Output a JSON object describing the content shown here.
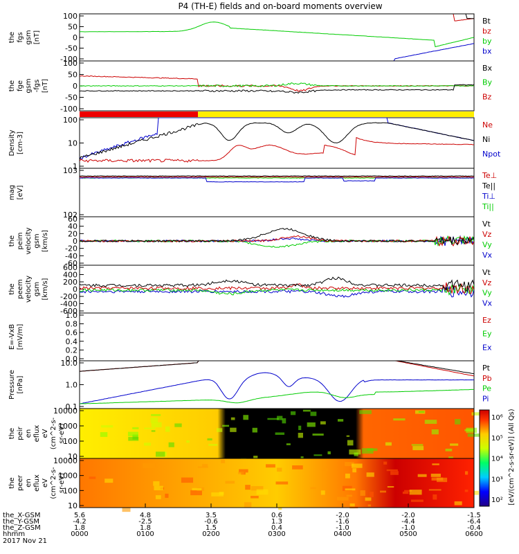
{
  "title": "P4 (TH-E) fields and on-board moments overview",
  "chart_data": [
    {
      "type": "line",
      "panel": "fgs",
      "ylabel": [
        "the",
        "fgs",
        "gsm",
        "[nT]"
      ],
      "ylim": [
        -100,
        100
      ],
      "yticks": [
        -100,
        -50,
        0,
        50,
        100
      ],
      "legend": [
        {
          "name": "Bt",
          "color": "#000000"
        },
        {
          "name": "bz",
          "color": "#cc0000"
        },
        {
          "name": "by",
          "color": "#00cc00"
        },
        {
          "name": "bx",
          "color": "#0000cc"
        }
      ]
    },
    {
      "type": "line",
      "panel": "fge",
      "ylabel": [
        "the",
        "fge",
        "gsm",
        "-fgs",
        "[nT]"
      ],
      "ylim": [
        -120,
        120
      ],
      "yticks": [
        -100,
        -50,
        0,
        50,
        100
      ],
      "legend": [
        {
          "name": "Bx",
          "color": "#000000"
        },
        {
          "name": "By",
          "color": "#00cc00"
        },
        {
          "name": "Bz",
          "color": "#cc0000"
        }
      ]
    },
    {
      "type": "bar",
      "panel": "mode",
      "segments": [
        {
          "from": 0.0,
          "to": 0.3,
          "color": "#ee0000"
        },
        {
          "from": 0.3,
          "to": 1.0,
          "color": "#ffee00"
        }
      ]
    },
    {
      "type": "line",
      "panel": "density",
      "scale": "log",
      "ylabel": [
        "Density",
        "[cm-3]"
      ],
      "ylim": [
        0.5,
        200
      ],
      "yticks": [
        "1",
        "10",
        "100"
      ],
      "legend": [
        {
          "name": "Ne",
          "color": "#cc0000"
        },
        {
          "name": "Ni",
          "color": "#000000"
        },
        {
          "name": "Npot",
          "color": "#0000cc"
        }
      ]
    },
    {
      "type": "line",
      "panel": "temperature",
      "ylabel": [
        "mag",
        "[eV]"
      ],
      "yticks": [
        "102",
        "103"
      ],
      "legend": [
        {
          "name": "Te⊥",
          "color": "#cc0000"
        },
        {
          "name": "Te||",
          "color": "#000000"
        },
        {
          "name": "Ti⊥",
          "color": "#0000cc"
        },
        {
          "name": "Ti||",
          "color": "#00cc00"
        }
      ]
    },
    {
      "type": "line",
      "panel": "peim",
      "ylabel": [
        "the",
        "peim",
        "velocity",
        "gsm",
        "[km/s]"
      ],
      "ylim": [
        -60,
        60
      ],
      "yticks": [
        -60,
        -40,
        -20,
        0,
        20,
        40,
        60
      ],
      "legend": [
        {
          "name": "Vt",
          "color": "#000000"
        },
        {
          "name": "Vz",
          "color": "#cc0000"
        },
        {
          "name": "Vy",
          "color": "#00cc00"
        },
        {
          "name": "Vx",
          "color": "#0000cc"
        }
      ]
    },
    {
      "type": "line",
      "panel": "peem",
      "ylabel": [
        "the",
        "peem",
        "velocity",
        "gsm",
        "[km/s]"
      ],
      "ylim": [
        -600,
        600
      ],
      "yticks": [
        -600,
        -400,
        -200,
        0,
        200,
        400,
        600
      ],
      "legend": [
        {
          "name": "Vt",
          "color": "#000000"
        },
        {
          "name": "Vz",
          "color": "#cc0000"
        },
        {
          "name": "Vy",
          "color": "#00cc00"
        },
        {
          "name": "Vx",
          "color": "#0000cc"
        }
      ]
    },
    {
      "type": "line",
      "panel": "efield",
      "ylabel": [
        "E=-VxB",
        "[mV/m]"
      ],
      "ylim": [
        0,
        1
      ],
      "yticks": [
        "0.0",
        "0.2",
        "0.4",
        "0.6",
        "0.8",
        "1.0"
      ],
      "legend": [
        {
          "name": "Ez",
          "color": "#cc0000"
        },
        {
          "name": "Ey",
          "color": "#00cc00"
        },
        {
          "name": "Ex",
          "color": "#0000cc"
        }
      ]
    },
    {
      "type": "line",
      "panel": "pressure",
      "scale": "log",
      "ylabel": [
        "Pressure",
        "[nPa]"
      ],
      "yticks": [
        "0.1",
        "1.0",
        "10.0"
      ],
      "legend": [
        {
          "name": "Pt",
          "color": "#000000"
        },
        {
          "name": "Pb",
          "color": "#cc0000"
        },
        {
          "name": "Pe",
          "color": "#00cc00"
        },
        {
          "name": "Pi",
          "color": "#0000cc"
        }
      ]
    },
    {
      "type": "heatmap",
      "panel": "peir",
      "ylabel": [
        "the",
        "peir",
        "en",
        "eflux",
        "eV",
        "(cm^2-s-",
        "sr-eV)"
      ],
      "yticks": [
        "10",
        "100",
        "1000",
        "10000"
      ]
    },
    {
      "type": "heatmap",
      "panel": "peer",
      "ylabel": [
        "the",
        "peer",
        "en",
        "eflux",
        "eV",
        "(cm^2-s-",
        "sr-eV)"
      ],
      "yticks": [
        "10",
        "100",
        "1000",
        "10000"
      ]
    }
  ],
  "colorbar": {
    "label": "[eV/(cm^2-s-sr-eV)] (All Qs)",
    "ticks": [
      "10²",
      "10³",
      "10⁴",
      "10⁵",
      "10⁶"
    ]
  },
  "x_axis": {
    "row_labels": [
      "the_X-GSM",
      "the_Y-GSM",
      "the_Z-GSM",
      "hhmm",
      "2017 Nov 21"
    ],
    "ticks": [
      {
        "x": "5.6",
        "y": "-4.2",
        "z": "1.8",
        "t": "0000"
      },
      {
        "x": "4.8",
        "y": "-2.5",
        "z": "1.8",
        "t": "0100"
      },
      {
        "x": "3.5",
        "y": "-0.6",
        "z": "1.5",
        "t": "0200"
      },
      {
        "x": "0.6",
        "y": "1.3",
        "z": "0.4",
        "t": "0300"
      },
      {
        "x": "-2.0",
        "y": "-1.6",
        "z": "-1.0",
        "t": "0400"
      },
      {
        "x": "-2.0",
        "y": "-4.4",
        "z": "-1.0",
        "t": "0500"
      },
      {
        "x": "-1.5",
        "y": "-6.4",
        "z": "-0.4",
        "t": "0600"
      }
    ]
  }
}
